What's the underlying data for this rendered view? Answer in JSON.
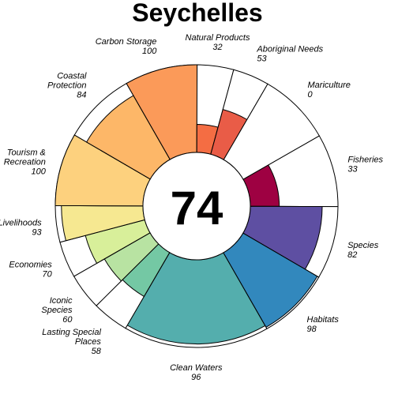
{
  "chart_data": {
    "type": "flower",
    "title": "Seychelles",
    "center_score": "74",
    "value_max": 100,
    "petals": [
      {
        "lines": [
          "Carbon Storage"
        ],
        "score": "100",
        "value": 100,
        "weight": 1.0,
        "color": "#FB9A59"
      },
      {
        "lines": [
          "Natural Products"
        ],
        "score": "32",
        "value": 32,
        "weight": 0.5,
        "color": "#F46D43"
      },
      {
        "lines": [
          "Aboriginal Needs"
        ],
        "score": "53",
        "value": 53,
        "weight": 0.5,
        "color": "#E95C47"
      },
      {
        "lines": [
          "Mariculture"
        ],
        "score": "0",
        "value": 0,
        "weight": 1.0,
        "color": "#D53E4F"
      },
      {
        "lines": [
          "Fisheries"
        ],
        "score": "33",
        "value": 33,
        "weight": 1.0,
        "color": "#9E0142"
      },
      {
        "lines": [
          "Species"
        ],
        "score": "82",
        "value": 82,
        "weight": 1.0,
        "color": "#5E4FA2"
      },
      {
        "lines": [
          "Habitats"
        ],
        "score": "98",
        "value": 98,
        "weight": 1.0,
        "color": "#3288BD"
      },
      {
        "lines": [
          "Clean Waters"
        ],
        "score": "96",
        "value": 96,
        "weight": 2.0,
        "color": "#54AEAD"
      },
      {
        "lines": [
          "Lasting Special",
          "Places"
        ],
        "score": "58",
        "value": 58,
        "weight": 0.5,
        "color": "#74C8A4"
      },
      {
        "lines": [
          "Iconic",
          "Species"
        ],
        "score": "60",
        "value": 60,
        "weight": 0.5,
        "color": "#B8E3A2"
      },
      {
        "lines": [
          "Economies"
        ],
        "score": "70",
        "value": 70,
        "weight": 0.5,
        "color": "#D8EF9A"
      },
      {
        "lines": [
          "Livelihoods"
        ],
        "score": "93",
        "value": 93,
        "weight": 0.5,
        "color": "#F6E891"
      },
      {
        "lines": [
          "Tourism &",
          "Recreation"
        ],
        "score": "100",
        "value": 100,
        "weight": 1.0,
        "color": "#FDD17E"
      },
      {
        "lines": [
          "Coastal",
          "Protection"
        ],
        "score": "84",
        "value": 84,
        "weight": 1.0,
        "color": "#FDB768"
      }
    ]
  }
}
